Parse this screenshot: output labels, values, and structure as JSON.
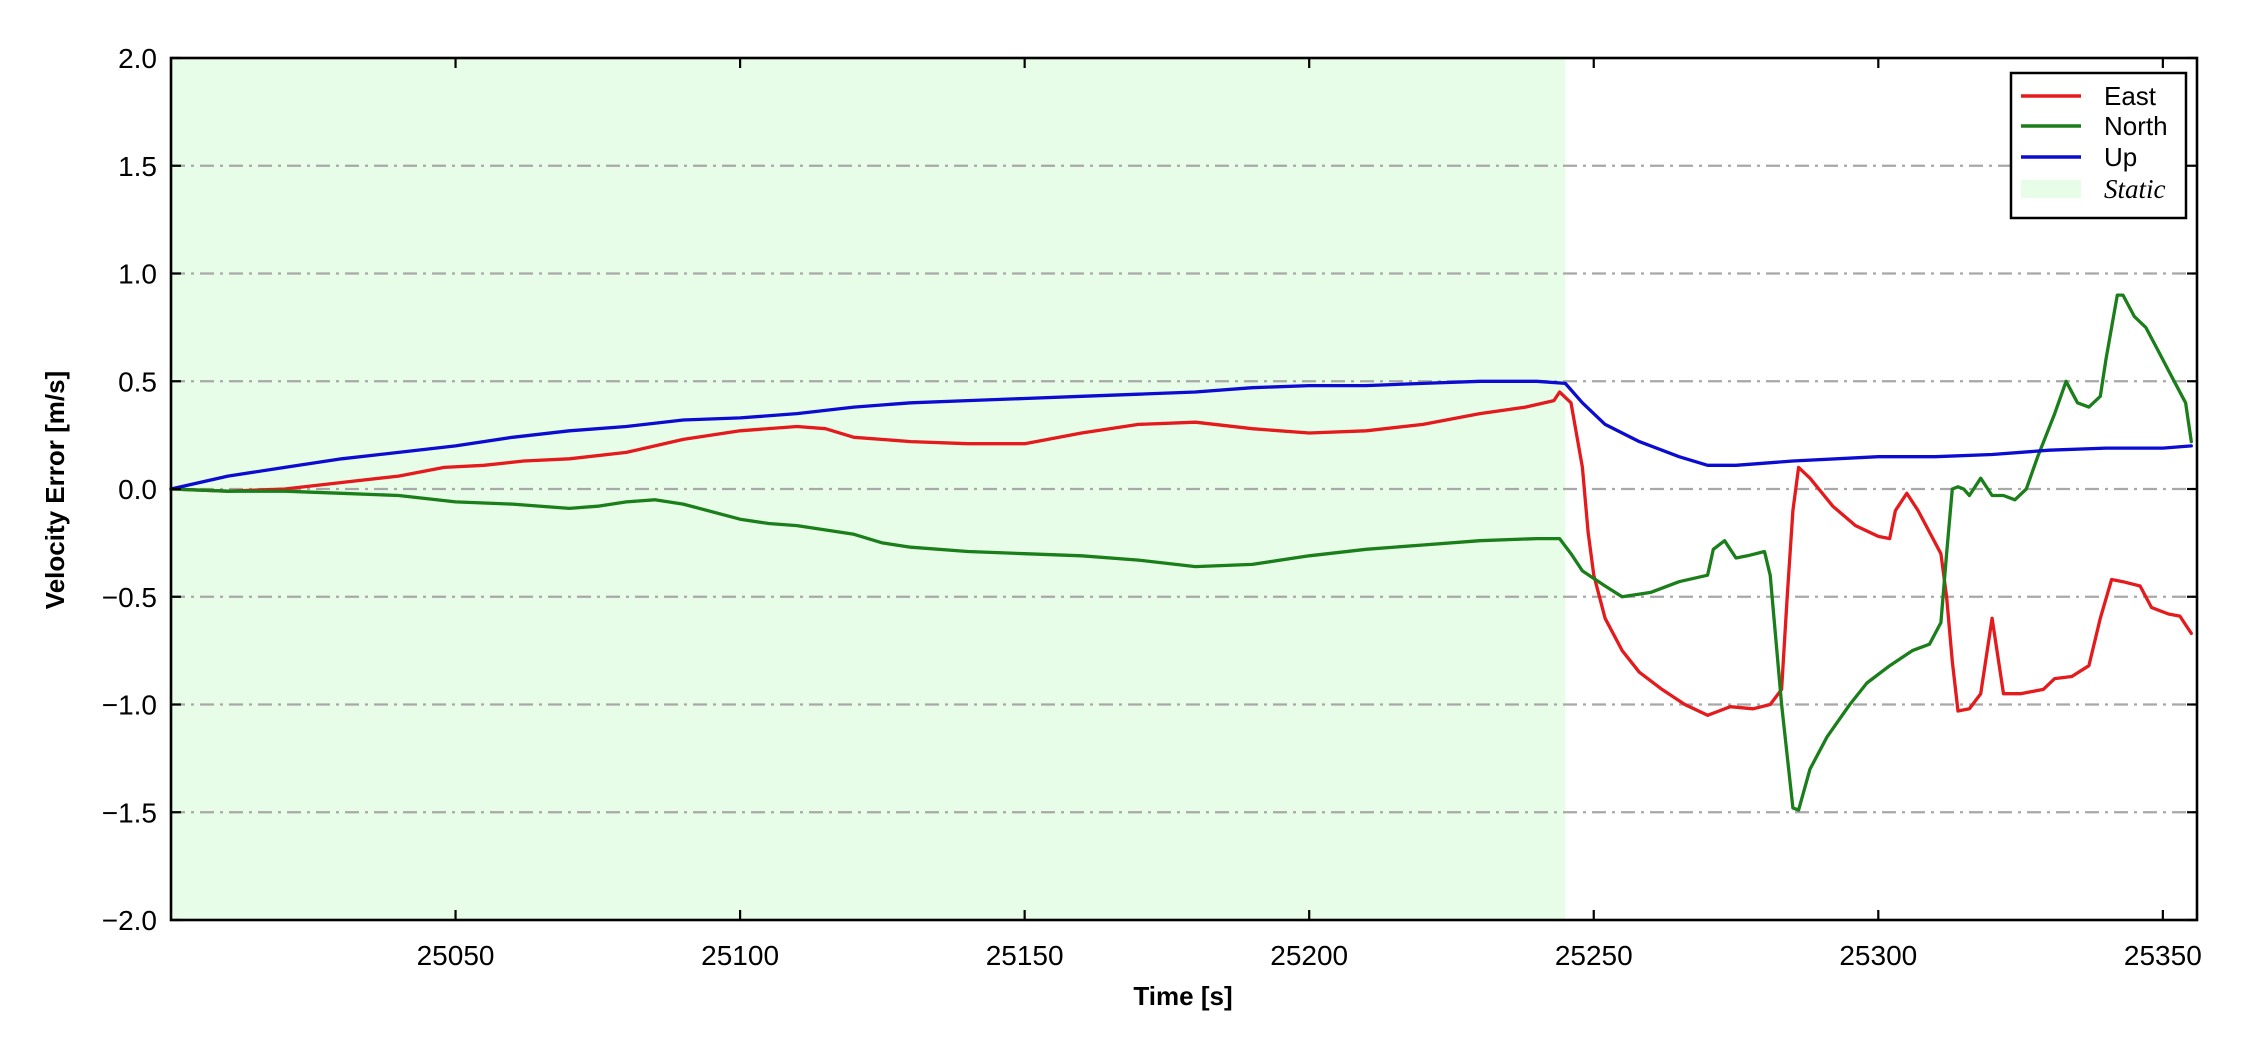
{
  "chart_data": {
    "type": "line",
    "xlabel": "Time [s]",
    "ylabel": "Velocity Error [m/s]",
    "xlim": [
      25000,
      25356
    ],
    "ylim": [
      -2.0,
      2.0
    ],
    "xticks": [
      25050,
      25100,
      25150,
      25200,
      25250,
      25300,
      25350
    ],
    "xtick_labels": [
      "25050",
      "25100",
      "25150",
      "25200",
      "25250",
      "25300",
      "25350"
    ],
    "yticks": [
      -2.0,
      -1.5,
      -1.0,
      -0.5,
      0.0,
      0.5,
      1.0,
      1.5,
      2.0
    ],
    "ytick_labels": [
      "−2.0",
      "−1.5",
      "−1.0",
      "−0.5",
      "0.0",
      "0.5",
      "1.0",
      "1.5",
      "2.0"
    ],
    "grid": "horizontal dash-dot",
    "legend_position": "top-right",
    "static_region": {
      "label": "Static",
      "x_start": 25000,
      "x_end": 25245,
      "color": "#e8fde8"
    },
    "series": [
      {
        "name": "East",
        "color": "#e41a1c",
        "points": [
          [
            25000,
            0.0
          ],
          [
            25010,
            -0.01
          ],
          [
            25020,
            0.0
          ],
          [
            25030,
            0.03
          ],
          [
            25040,
            0.06
          ],
          [
            25048,
            0.1
          ],
          [
            25055,
            0.11
          ],
          [
            25062,
            0.13
          ],
          [
            25070,
            0.14
          ],
          [
            25080,
            0.17
          ],
          [
            25090,
            0.23
          ],
          [
            25100,
            0.27
          ],
          [
            25110,
            0.29
          ],
          [
            25115,
            0.28
          ],
          [
            25120,
            0.24
          ],
          [
            25130,
            0.22
          ],
          [
            25140,
            0.21
          ],
          [
            25150,
            0.21
          ],
          [
            25160,
            0.26
          ],
          [
            25170,
            0.3
          ],
          [
            25180,
            0.31
          ],
          [
            25190,
            0.28
          ],
          [
            25200,
            0.26
          ],
          [
            25210,
            0.27
          ],
          [
            25220,
            0.3
          ],
          [
            25230,
            0.35
          ],
          [
            25238,
            0.38
          ],
          [
            25243,
            0.41
          ],
          [
            25244,
            0.45
          ],
          [
            25246,
            0.4
          ],
          [
            25247,
            0.25
          ],
          [
            25248,
            0.1
          ],
          [
            25249,
            -0.2
          ],
          [
            25250,
            -0.4
          ],
          [
            25252,
            -0.6
          ],
          [
            25255,
            -0.75
          ],
          [
            25258,
            -0.85
          ],
          [
            25262,
            -0.93
          ],
          [
            25266,
            -1.0
          ],
          [
            25270,
            -1.05
          ],
          [
            25272,
            -1.03
          ],
          [
            25274,
            -1.01
          ],
          [
            25278,
            -1.02
          ],
          [
            25281,
            -1.0
          ],
          [
            25283,
            -0.93
          ],
          [
            25284,
            -0.5
          ],
          [
            25285,
            -0.1
          ],
          [
            25286,
            0.1
          ],
          [
            25288,
            0.05
          ],
          [
            25292,
            -0.08
          ],
          [
            25296,
            -0.17
          ],
          [
            25300,
            -0.22
          ],
          [
            25302,
            -0.23
          ],
          [
            25303,
            -0.1
          ],
          [
            25305,
            -0.02
          ],
          [
            25307,
            -0.1
          ],
          [
            25309,
            -0.2
          ],
          [
            25311,
            -0.3
          ],
          [
            25312,
            -0.5
          ],
          [
            25313,
            -0.8
          ],
          [
            25314,
            -1.03
          ],
          [
            25316,
            -1.02
          ],
          [
            25318,
            -0.95
          ],
          [
            25320,
            -0.6
          ],
          [
            25322,
            -0.95
          ],
          [
            25325,
            -0.95
          ],
          [
            25329,
            -0.93
          ],
          [
            25331,
            -0.88
          ],
          [
            25334,
            -0.87
          ],
          [
            25337,
            -0.82
          ],
          [
            25339,
            -0.6
          ],
          [
            25341,
            -0.42
          ],
          [
            25343,
            -0.43
          ],
          [
            25346,
            -0.45
          ],
          [
            25348,
            -0.55
          ],
          [
            25351,
            -0.58
          ],
          [
            25353,
            -0.59
          ],
          [
            25355,
            -0.67
          ]
        ]
      },
      {
        "name": "North",
        "color": "#1a7f1a",
        "points": [
          [
            25000,
            0.0
          ],
          [
            25010,
            -0.01
          ],
          [
            25020,
            -0.01
          ],
          [
            25030,
            -0.02
          ],
          [
            25040,
            -0.03
          ],
          [
            25050,
            -0.06
          ],
          [
            25060,
            -0.07
          ],
          [
            25070,
            -0.09
          ],
          [
            25075,
            -0.08
          ],
          [
            25080,
            -0.06
          ],
          [
            25085,
            -0.05
          ],
          [
            25090,
            -0.07
          ],
          [
            25100,
            -0.14
          ],
          [
            25105,
            -0.16
          ],
          [
            25110,
            -0.17
          ],
          [
            25120,
            -0.21
          ],
          [
            25125,
            -0.25
          ],
          [
            25130,
            -0.27
          ],
          [
            25140,
            -0.29
          ],
          [
            25150,
            -0.3
          ],
          [
            25160,
            -0.31
          ],
          [
            25170,
            -0.33
          ],
          [
            25180,
            -0.36
          ],
          [
            25190,
            -0.35
          ],
          [
            25200,
            -0.31
          ],
          [
            25210,
            -0.28
          ],
          [
            25220,
            -0.26
          ],
          [
            25230,
            -0.24
          ],
          [
            25240,
            -0.23
          ],
          [
            25244,
            -0.23
          ],
          [
            25246,
            -0.3
          ],
          [
            25248,
            -0.38
          ],
          [
            25252,
            -0.45
          ],
          [
            25255,
            -0.5
          ],
          [
            25260,
            -0.48
          ],
          [
            25265,
            -0.43
          ],
          [
            25270,
            -0.4
          ],
          [
            25271,
            -0.28
          ],
          [
            25273,
            -0.24
          ],
          [
            25275,
            -0.32
          ],
          [
            25277,
            -0.31
          ],
          [
            25280,
            -0.29
          ],
          [
            25281,
            -0.4
          ],
          [
            25283,
            -1.0
          ],
          [
            25285,
            -1.48
          ],
          [
            25286,
            -1.49
          ],
          [
            25288,
            -1.3
          ],
          [
            25291,
            -1.15
          ],
          [
            25295,
            -1.0
          ],
          [
            25298,
            -0.9
          ],
          [
            25302,
            -0.82
          ],
          [
            25306,
            -0.75
          ],
          [
            25309,
            -0.72
          ],
          [
            25311,
            -0.62
          ],
          [
            25312,
            -0.3
          ],
          [
            25313,
            0.0
          ],
          [
            25314,
            0.01
          ],
          [
            25315,
            0.0
          ],
          [
            25316,
            -0.03
          ],
          [
            25318,
            0.05
          ],
          [
            25320,
            -0.03
          ],
          [
            25322,
            -0.03
          ],
          [
            25324,
            -0.05
          ],
          [
            25326,
            0.0
          ],
          [
            25328,
            0.15
          ],
          [
            25331,
            0.35
          ],
          [
            25333,
            0.5
          ],
          [
            25335,
            0.4
          ],
          [
            25337,
            0.38
          ],
          [
            25339,
            0.43
          ],
          [
            25340,
            0.6
          ],
          [
            25342,
            0.9
          ],
          [
            25343,
            0.9
          ],
          [
            25345,
            0.8
          ],
          [
            25347,
            0.75
          ],
          [
            25349,
            0.65
          ],
          [
            25351,
            0.55
          ],
          [
            25352,
            0.5
          ],
          [
            25354,
            0.4
          ],
          [
            25355,
            0.22
          ]
        ]
      },
      {
        "name": "Up",
        "color": "#0b0bd1",
        "points": [
          [
            25000,
            0.0
          ],
          [
            25010,
            0.06
          ],
          [
            25020,
            0.1
          ],
          [
            25030,
            0.14
          ],
          [
            25040,
            0.17
          ],
          [
            25050,
            0.2
          ],
          [
            25060,
            0.24
          ],
          [
            25070,
            0.27
          ],
          [
            25080,
            0.29
          ],
          [
            25090,
            0.32
          ],
          [
            25100,
            0.33
          ],
          [
            25110,
            0.35
          ],
          [
            25120,
            0.38
          ],
          [
            25130,
            0.4
          ],
          [
            25140,
            0.41
          ],
          [
            25150,
            0.42
          ],
          [
            25160,
            0.43
          ],
          [
            25170,
            0.44
          ],
          [
            25180,
            0.45
          ],
          [
            25190,
            0.47
          ],
          [
            25200,
            0.48
          ],
          [
            25210,
            0.48
          ],
          [
            25220,
            0.49
          ],
          [
            25230,
            0.5
          ],
          [
            25240,
            0.5
          ],
          [
            25245,
            0.49
          ],
          [
            25248,
            0.4
          ],
          [
            25252,
            0.3
          ],
          [
            25258,
            0.22
          ],
          [
            25265,
            0.15
          ],
          [
            25270,
            0.11
          ],
          [
            25275,
            0.11
          ],
          [
            25285,
            0.13
          ],
          [
            25300,
            0.15
          ],
          [
            25310,
            0.15
          ],
          [
            25320,
            0.16
          ],
          [
            25330,
            0.18
          ],
          [
            25340,
            0.19
          ],
          [
            25350,
            0.19
          ],
          [
            25355,
            0.2
          ]
        ]
      }
    ]
  }
}
